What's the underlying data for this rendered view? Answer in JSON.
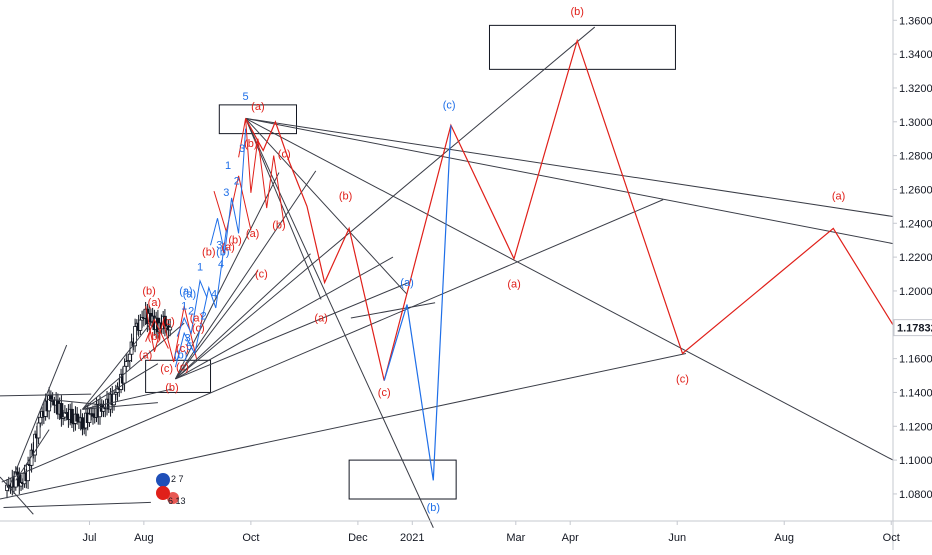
{
  "chart_data": {
    "type": "line",
    "symbol_icon": "flag-eu-us-icon",
    "badges": {
      "top": "2 7",
      "bottom": "6 13"
    },
    "price_axis": {
      "ticks": [
        1.36,
        1.34,
        1.32,
        1.3,
        1.28,
        1.26,
        1.24,
        1.22,
        1.2,
        1.16,
        1.14,
        1.12,
        1.1,
        1.08
      ],
      "tick_labels": [
        "1.36000",
        "1.34000",
        "1.32000",
        "1.30000",
        "1.28000",
        "1.26000",
        "1.24000",
        "1.22000",
        "1.20000",
        "1.16000",
        "1.14000",
        "1.12000",
        "1.10000",
        "1.08000"
      ],
      "current_price": 1.17832,
      "current_price_label": "1.17832",
      "ylim": [
        1.064,
        1.372
      ]
    },
    "time_axis": {
      "ticks": [
        {
          "label": "Jul",
          "date": "2020-07-01"
        },
        {
          "label": "Aug",
          "date": "2020-08-01"
        },
        {
          "label": "Oct",
          "date": "2020-10-01"
        },
        {
          "label": "Dec",
          "date": "2020-12-01"
        },
        {
          "label": "2021",
          "date": "2021-01-01"
        },
        {
          "label": "Mar",
          "date": "2021-03-01"
        },
        {
          "label": "Apr",
          "date": "2021-04-01"
        },
        {
          "label": "Jun",
          "date": "2021-06-01"
        },
        {
          "label": "Aug",
          "date": "2021-08-01"
        },
        {
          "label": "Oct",
          "date": "2021-10-01"
        }
      ],
      "xlim": [
        "2020-05-11",
        "2021-10-02"
      ]
    },
    "price_history": [
      [
        "2020-05-14",
        1.082
      ],
      [
        "2020-05-20",
        1.089
      ],
      [
        "2020-05-24",
        1.085
      ],
      [
        "2020-05-28",
        1.098
      ],
      [
        "2020-06-03",
        1.125
      ],
      [
        "2020-06-09",
        1.137
      ],
      [
        "2020-06-15",
        1.128
      ],
      [
        "2020-06-21",
        1.126
      ],
      [
        "2020-06-27",
        1.122
      ],
      [
        "2020-07-03",
        1.128
      ],
      [
        "2020-07-09",
        1.131
      ],
      [
        "2020-07-15",
        1.137
      ],
      [
        "2020-07-21",
        1.152
      ],
      [
        "2020-07-27",
        1.175
      ],
      [
        "2020-08-01",
        1.186
      ],
      [
        "2020-08-05",
        1.183
      ],
      [
        "2020-08-09",
        1.179
      ],
      [
        "2020-08-13",
        1.182
      ],
      [
        "2020-08-16",
        1.176
      ]
    ],
    "boxes": [
      {
        "x1": "2020-09-13",
        "x2": "2020-10-27",
        "y_high": 1.31,
        "y_low": 1.293
      },
      {
        "x1": "2021-02-14",
        "x2": "2021-05-31",
        "y_high": 1.357,
        "y_low": 1.331
      },
      {
        "x1": "2020-08-02",
        "x2": "2020-09-08",
        "y_high": 1.159,
        "y_low": 1.14
      },
      {
        "x1": "2020-11-26",
        "x2": "2021-01-26",
        "y_high": 1.1,
        "y_low": 1.077
      }
    ],
    "trend_lines": [
      {
        "x1": "2020-05-11",
        "y1": 1.138,
        "x2": "2020-07-02",
        "y2": 1.139
      },
      {
        "x1": "2020-05-11",
        "y1": 1.077,
        "x2": "2021-06-06",
        "y2": 1.163
      },
      {
        "x1": "2020-05-12",
        "y1": 1.087,
        "x2": "2021-05-24",
        "y2": 1.254
      },
      {
        "x1": "2020-05-13",
        "y1": 1.072,
        "x2": "2020-08-05",
        "y2": 1.075
      },
      {
        "x1": "2020-08-19",
        "y1": 1.148,
        "x2": "2021-04-15",
        "y2": 1.356
      },
      {
        "x1": "2020-09-28",
        "y1": 1.302,
        "x2": "2021-10-02",
        "y2": 1.244
      },
      {
        "x1": "2020-09-28",
        "y1": 1.302,
        "x2": "2021-10-02",
        "y2": 1.228
      },
      {
        "x1": "2020-09-28",
        "y1": 1.302,
        "x2": "2021-10-02",
        "y2": 1.1
      },
      {
        "x1": "2020-09-28",
        "y1": 1.302,
        "x2": "2021-01-13",
        "y2": 1.06
      },
      {
        "x1": "2020-09-28",
        "y1": 1.302,
        "x2": "2020-12-29",
        "y2": 1.198
      },
      {
        "x1": "2020-09-28",
        "y1": 1.302,
        "x2": "2020-11-10",
        "y2": 1.195
      },
      {
        "x1": "2020-08-19",
        "y1": 1.148,
        "x2": "2020-11-07",
        "y2": 1.271
      },
      {
        "x1": "2020-08-19",
        "y1": 1.148,
        "x2": "2020-10-17",
        "y2": 1.27
      },
      {
        "x1": "2020-08-19",
        "y1": 1.148,
        "x2": "2020-12-21",
        "y2": 1.22
      },
      {
        "x1": "2020-08-19",
        "y1": 1.148,
        "x2": "2020-12-30",
        "y2": 1.205
      },
      {
        "x1": "2020-08-19",
        "y1": 1.148,
        "x2": "2020-11-04",
        "y2": 1.222
      },
      {
        "x1": "2020-08-19",
        "y1": 1.148,
        "x2": "2020-10-05",
        "y2": 1.212
      },
      {
        "x1": "2020-11-27",
        "y1": 1.184,
        "x2": "2021-01-14",
        "y2": 1.193
      },
      {
        "x1": "2020-06-27",
        "y1": 1.13,
        "x2": "2020-08-08",
        "y2": 1.185
      },
      {
        "x1": "2020-06-27",
        "y1": 1.13,
        "x2": "2020-08-09",
        "y2": 1.157
      },
      {
        "x1": "2020-06-27",
        "y1": 1.13,
        "x2": "2020-08-24",
        "y2": 1.181
      },
      {
        "x1": "2020-06-27",
        "y1": 1.13,
        "x2": "2020-08-17",
        "y2": 1.142
      },
      {
        "x1": "2020-06-27",
        "y1": 1.13,
        "x2": "2020-08-09",
        "y2": 1.134
      },
      {
        "x1": "2020-06-07",
        "y1": 1.136,
        "x2": "2020-07-05",
        "y2": 1.133
      },
      {
        "x1": "2020-05-17",
        "y1": 1.086,
        "x2": "2020-06-18",
        "y2": 1.168
      },
      {
        "x1": "2020-05-20",
        "y1": 1.088,
        "x2": "2020-06-08",
        "y2": 1.118
      },
      {
        "x1": "2020-05-11",
        "y1": 1.09,
        "x2": "2020-05-30",
        "y2": 1.068
      }
    ],
    "red_path": [
      [
        "2020-09-28",
        1.302
      ],
      [
        "2020-10-08",
        1.283
      ],
      [
        "2020-10-15",
        1.3
      ],
      [
        "2020-10-23",
        1.276
      ],
      [
        "2020-11-02",
        1.25
      ],
      [
        "2020-11-12",
        1.205
      ],
      [
        "2020-11-26",
        1.237
      ],
      [
        "2020-12-16",
        1.147
      ],
      [
        "2021-01-23",
        1.298
      ],
      [
        "2021-02-28",
        1.219
      ],
      [
        "2021-04-05",
        1.348
      ],
      [
        "2021-06-04",
        1.163
      ],
      [
        "2021-08-29",
        1.237
      ],
      [
        "2021-10-02",
        1.18
      ]
    ],
    "blue_path": [
      [
        "2020-12-16",
        1.147
      ],
      [
        "2020-12-29",
        1.192
      ],
      [
        "2021-01-13",
        1.088
      ],
      [
        "2021-01-23",
        1.298
      ]
    ],
    "small_waves": {
      "red": [
        [
          [
            "2020-09-24",
            1.279
          ],
          [
            "2020-09-28",
            1.302
          ],
          [
            "2020-10-01",
            1.258
          ],
          [
            "2020-10-05",
            1.29
          ],
          [
            "2020-10-10",
            1.249
          ],
          [
            "2020-10-14",
            1.28
          ],
          [
            "2020-10-20",
            1.239
          ]
        ],
        [
          [
            "2020-09-10",
            1.259
          ],
          [
            "2020-09-17",
            1.235
          ],
          [
            "2020-09-24",
            1.268
          ],
          [
            "2020-10-01",
            1.236
          ]
        ],
        [
          [
            "2020-08-02",
            1.191
          ],
          [
            "2020-08-07",
            1.164
          ],
          [
            "2020-08-12",
            1.182
          ],
          [
            "2020-08-18",
            1.158
          ],
          [
            "2020-08-24",
            1.191
          ],
          [
            "2020-08-31",
            1.16
          ]
        ],
        [
          [
            "2020-08-02",
            1.17
          ],
          [
            "2020-08-07",
            1.183
          ],
          [
            "2020-08-15",
            1.166
          ]
        ]
      ],
      "blue": [
        [
          [
            "2020-09-08",
            1.227
          ],
          [
            "2020-09-12",
            1.243
          ],
          [
            "2020-09-16",
            1.222
          ],
          [
            "2020-09-20",
            1.255
          ],
          [
            "2020-09-24",
            1.234
          ],
          [
            "2020-09-28",
            1.296
          ]
        ],
        [
          [
            "2020-08-19",
            1.155
          ],
          [
            "2020-08-24",
            1.175
          ],
          [
            "2020-08-30",
            1.163
          ],
          [
            "2020-09-07",
            1.202
          ],
          [
            "2020-09-11",
            1.19
          ],
          [
            "2020-09-17",
            1.236
          ]
        ],
        [
          [
            "2020-08-20",
            1.173
          ],
          [
            "2020-08-24",
            1.184
          ],
          [
            "2020-08-28",
            1.175
          ],
          [
            "2020-09-02",
            1.206
          ],
          [
            "2020-09-06",
            1.196
          ]
        ]
      ]
    },
    "annotations": [
      {
        "text": "(b)",
        "color": "#e0201a",
        "x": "2021-04-05",
        "y": 1.363
      },
      {
        "text": "(a)",
        "color": "#e0201a",
        "x": "2020-10-05",
        "y": 1.307
      },
      {
        "text": "5",
        "color": "#1f6fe8",
        "x": "2020-09-28",
        "y": 1.313
      },
      {
        "text": "(c)",
        "color": "#1f6fe8",
        "x": "2021-01-22",
        "y": 1.308
      },
      {
        "text": "(b)",
        "color": "#e0201a",
        "x": "2020-10-01",
        "y": 1.285
      },
      {
        "text": "(c)",
        "color": "#e0201a",
        "x": "2020-10-20",
        "y": 1.279
      },
      {
        "text": "(b)",
        "color": "#e0201a",
        "x": "2020-11-24",
        "y": 1.254
      },
      {
        "text": "(a)",
        "color": "#e0201a",
        "x": "2021-09-01",
        "y": 1.254
      },
      {
        "text": "3",
        "color": "#1f6fe8",
        "x": "2020-09-17",
        "y": 1.256
      },
      {
        "text": "(a)",
        "color": "#e0201a",
        "x": "2020-10-02",
        "y": 1.232
      },
      {
        "text": "(b)",
        "color": "#e0201a",
        "x": "2020-10-17",
        "y": 1.237
      },
      {
        "text": "(c)",
        "color": "#e0201a",
        "x": "2020-10-07",
        "y": 1.208
      },
      {
        "text": "(a)",
        "color": "#e0201a",
        "x": "2021-02-28",
        "y": 1.202
      },
      {
        "text": "(a)",
        "color": "#1f6fe8",
        "x": "2020-12-29",
        "y": 1.203
      },
      {
        "text": "(a)",
        "color": "#e0201a",
        "x": "2020-11-10",
        "y": 1.182
      },
      {
        "text": "(c)",
        "color": "#e0201a",
        "x": "2020-12-16",
        "y": 1.138
      },
      {
        "text": "(c)",
        "color": "#e0201a",
        "x": "2021-06-04",
        "y": 1.146
      },
      {
        "text": "(b)",
        "color": "#1f6fe8",
        "x": "2021-01-13",
        "y": 1.07
      },
      {
        "text": "(b)",
        "color": "#e0201a",
        "x": "2020-08-04",
        "y": 1.198
      },
      {
        "text": "(b)",
        "color": "#e0201a",
        "x": "2020-08-17",
        "y": 1.141
      },
      {
        "text": "(b)",
        "color": "#1f6fe8",
        "x": "2020-08-22",
        "y": 1.16
      },
      {
        "text": "(c)",
        "color": "#e0201a",
        "x": "2020-08-14",
        "y": 1.152
      },
      {
        "text": "(a)",
        "color": "#1f6fe8",
        "x": "2020-08-25",
        "y": 1.198
      },
      {
        "text": "(a)",
        "color": "#e0201a",
        "x": "2020-08-31",
        "y": 1.182
      },
      {
        "text": "(c)",
        "color": "#e0201a",
        "x": "2020-09-01",
        "y": 1.176
      },
      {
        "text": "(c)",
        "color": "#e0201a",
        "x": "2020-08-23",
        "y": 1.164
      },
      {
        "text": "(b)",
        "color": "#e0201a",
        "x": "2020-09-07",
        "y": 1.221
      },
      {
        "text": "(a)",
        "color": "#e0201a",
        "x": "2020-08-07",
        "y": 1.191
      },
      {
        "text": "(b)",
        "color": "#e0201a",
        "x": "2020-08-07",
        "y": 1.171
      },
      {
        "text": "1",
        "color": "#1f6fe8",
        "x": "2020-09-02",
        "y": 1.212
      },
      {
        "text": "2",
        "color": "#1f6fe8",
        "x": "2020-09-04",
        "y": 1.183
      },
      {
        "text": "2",
        "color": "#1f6fe8",
        "x": "2020-08-28",
        "y": 1.186
      },
      {
        "text": "4",
        "color": "#1f6fe8",
        "x": "2020-09-10",
        "y": 1.196
      },
      {
        "text": "4",
        "color": "#1f6fe8",
        "x": "2020-09-14",
        "y": 1.214
      },
      {
        "text": "3",
        "color": "#1f6fe8",
        "x": "2020-09-13",
        "y": 1.225
      },
      {
        "text": "1",
        "color": "#1f6fe8",
        "x": "2020-09-18",
        "y": 1.272
      },
      {
        "text": "2",
        "color": "#1f6fe8",
        "x": "2020-09-23",
        "y": 1.263
      },
      {
        "text": "3",
        "color": "#1f6fe8",
        "x": "2020-09-26",
        "y": 1.282
      },
      {
        "text": "1",
        "color": "#1f6fe8",
        "x": "2020-08-24",
        "y": 1.189
      },
      {
        "text": "3",
        "color": "#1f6fe8",
        "x": "2020-08-26",
        "y": 1.17
      },
      {
        "text": "5",
        "color": "#1f6fe8",
        "x": "2020-08-27",
        "y": 1.165
      },
      {
        "text": "(a)",
        "color": "#e0201a",
        "x": "2020-08-02",
        "y": 1.16
      },
      {
        "text": "(c)",
        "color": "#e0201a",
        "x": "2020-08-15",
        "y": 1.18
      },
      {
        "text": "(c)",
        "color": "#e0201a",
        "x": "2020-08-23",
        "y": 1.153
      },
      {
        "text": "(a)",
        "color": "#1f6fe8",
        "x": "2020-08-27",
        "y": 1.196
      },
      {
        "text": "(b)",
        "color": "#e0201a",
        "x": "2020-09-22",
        "y": 1.228
      },
      {
        "text": "(b)",
        "color": "#1f6fe8",
        "x": "2020-09-15",
        "y": 1.221
      },
      {
        "text": "(a)",
        "color": "#e0201a",
        "x": "2020-09-18",
        "y": 1.224
      }
    ],
    "colors": {
      "red": "#e0201a",
      "blue": "#1f6fe8",
      "line": "#3a3d47",
      "axis": "#c5c8cf",
      "bull": "#ffffff",
      "bear": "#131722"
    }
  }
}
